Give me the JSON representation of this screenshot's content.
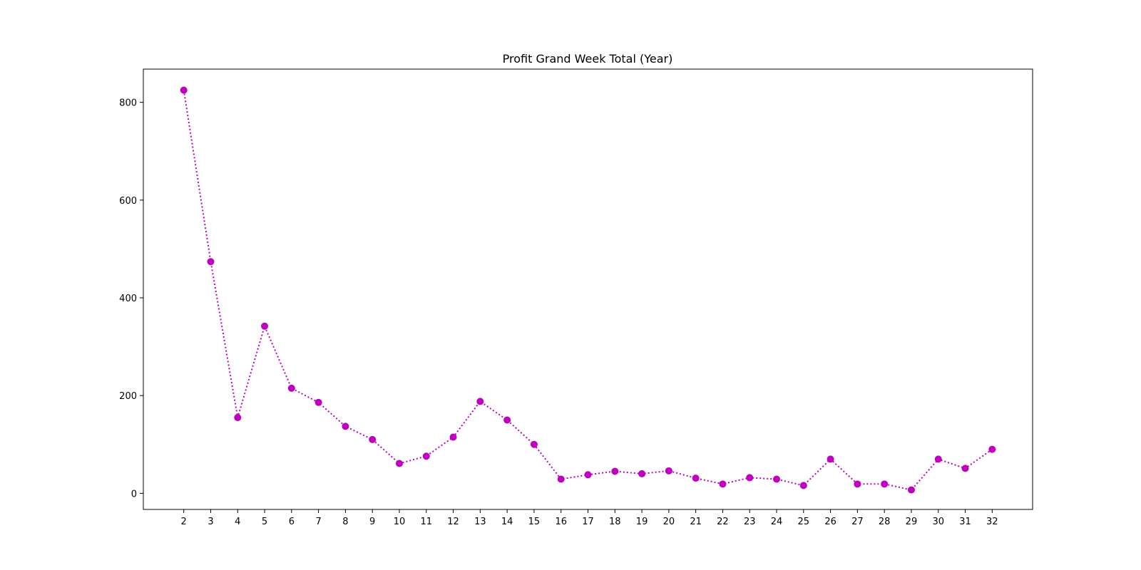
{
  "chart_data": {
    "type": "line",
    "title": "Profit Grand Week Total (Year)",
    "xlabel": "",
    "ylabel": "",
    "x": [
      2,
      3,
      4,
      5,
      6,
      7,
      8,
      9,
      10,
      11,
      12,
      13,
      14,
      15,
      16,
      17,
      18,
      19,
      20,
      21,
      22,
      23,
      24,
      25,
      26,
      27,
      28,
      29,
      30,
      31,
      32
    ],
    "series": [
      {
        "values": [
          825,
          474,
          155,
          342,
          215,
          186,
          137,
          110,
          61,
          76,
          115,
          188,
          150,
          100,
          29,
          38,
          45,
          40,
          46,
          31,
          19,
          32,
          29,
          16,
          70,
          19,
          19,
          7,
          70,
          51,
          90
        ],
        "color": "#bf00bf",
        "line_style": "dotted",
        "marker": "circle"
      }
    ],
    "xlim": [
      0.5,
      33.5
    ],
    "ylim": [
      -33,
      868
    ],
    "yticks": [
      0,
      200,
      400,
      600,
      800
    ],
    "grid": false,
    "legend": "none"
  }
}
